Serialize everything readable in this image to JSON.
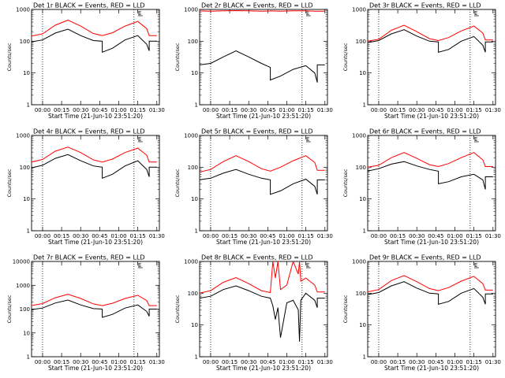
{
  "figure": {
    "xlabel": "Start Time (21-Jun-10 23:51:20)",
    "ylabel": "Counts/sec",
    "x_ticks": [
      "00:00",
      "00:15",
      "00:30",
      "00:45",
      "01:00",
      "01:15",
      "01:30"
    ],
    "y_ticks": [
      "1",
      "10",
      "100",
      "1000"
    ],
    "y_ticks_wide": [
      "1",
      "10",
      "100",
      "1000",
      "10000"
    ],
    "marker_label": "E",
    "colors": {
      "events": "#000000",
      "lld": "#ff0000",
      "background": "#ffffff"
    }
  },
  "chart_data": [
    {
      "type": "line",
      "title": "Det 1r BLACK = Events, RED = LLD",
      "ylim": [
        1,
        1000
      ],
      "yscale": "log",
      "xlim": [
        "23:51:20",
        "01:32:00"
      ],
      "vlines": [
        "00:00",
        "01:12"
      ],
      "marker_x": "01:17",
      "x": [
        "23:51",
        "00:00",
        "00:10",
        "00:20",
        "00:30",
        "00:40",
        "00:47",
        "00:47",
        "00:55",
        "01:05",
        "01:15",
        "01:22",
        "01:24",
        "01:24",
        "01:30"
      ],
      "series": [
        {
          "name": "BLACK = Events",
          "values": [
            95,
            110,
            180,
            240,
            150,
            105,
            100,
            45,
            60,
            110,
            150,
            80,
            50,
            100,
            100
          ]
        },
        {
          "name": "RED = LLD",
          "values": [
            145,
            170,
            320,
            460,
            300,
            175,
            150,
            150,
            185,
            300,
            420,
            250,
            150,
            150,
            150
          ]
        }
      ]
    },
    {
      "type": "line",
      "title": "Det 2r BLACK = Events, RED = LLD",
      "ylim": [
        1,
        1000
      ],
      "yscale": "log",
      "xlim": [
        "23:51:20",
        "01:32:00"
      ],
      "vlines": [
        "00:00",
        "01:12"
      ],
      "marker_x": "01:17",
      "x": [
        "23:51",
        "00:00",
        "00:10",
        "00:20",
        "00:30",
        "00:40",
        "00:47",
        "00:47",
        "00:55",
        "01:05",
        "01:15",
        "01:22",
        "01:24",
        "01:24",
        "01:30"
      ],
      "series": [
        {
          "name": "BLACK = Events",
          "values": [
            18,
            20,
            32,
            50,
            32,
            20,
            15,
            6,
            8,
            13,
            17,
            10,
            5,
            18,
            18
          ]
        },
        {
          "name": "RED = LLD",
          "values": [
            900,
            880,
            900,
            920,
            900,
            880,
            890,
            900,
            880,
            900,
            900,
            880,
            880,
            880,
            880
          ]
        }
      ]
    },
    {
      "type": "line",
      "title": "Det 3r BLACK = Events, RED = LLD",
      "ylim": [
        1,
        1000
      ],
      "yscale": "log",
      "xlim": [
        "23:51:20",
        "01:32:00"
      ],
      "vlines": [
        "00:00",
        "01:12"
      ],
      "marker_x": "01:17",
      "x": [
        "23:51",
        "00:00",
        "00:10",
        "00:20",
        "00:30",
        "00:40",
        "00:47",
        "00:47",
        "00:55",
        "01:05",
        "01:15",
        "01:22",
        "01:24",
        "01:24",
        "01:30"
      ],
      "series": [
        {
          "name": "BLACK = Events",
          "values": [
            90,
            105,
            170,
            230,
            145,
            100,
            95,
            45,
            55,
            100,
            140,
            75,
            45,
            95,
            95
          ]
        },
        {
          "name": "RED = LLD",
          "values": [
            100,
            115,
            220,
            320,
            200,
            120,
            105,
            105,
            130,
            210,
            300,
            180,
            110,
            110,
            110
          ]
        }
      ]
    },
    {
      "type": "line",
      "title": "Det 4r BLACK = Events, RED = LLD",
      "ylim": [
        1,
        1000
      ],
      "yscale": "log",
      "xlim": [
        "23:51:20",
        "01:32:00"
      ],
      "vlines": [
        "00:00",
        "01:12"
      ],
      "marker_x": "01:17",
      "x": [
        "23:51",
        "00:00",
        "00:10",
        "00:20",
        "00:30",
        "00:40",
        "00:47",
        "00:47",
        "00:55",
        "01:05",
        "01:15",
        "01:22",
        "01:24",
        "01:24",
        "01:30"
      ],
      "series": [
        {
          "name": "BLACK = Events",
          "values": [
            95,
            115,
            190,
            250,
            160,
            110,
            100,
            45,
            60,
            110,
            160,
            85,
            50,
            100,
            100
          ]
        },
        {
          "name": "RED = LLD",
          "values": [
            145,
            175,
            320,
            430,
            290,
            170,
            145,
            145,
            180,
            290,
            400,
            240,
            145,
            145,
            145
          ]
        }
      ]
    },
    {
      "type": "line",
      "title": "Det 5r BLACK = Events, RED = LLD",
      "ylim": [
        1,
        1000
      ],
      "yscale": "log",
      "xlim": [
        "23:51:20",
        "01:32:00"
      ],
      "vlines": [
        "00:00",
        "01:12"
      ],
      "marker_x": "01:17",
      "x": [
        "23:51",
        "00:00",
        "00:10",
        "00:20",
        "00:30",
        "00:40",
        "00:47",
        "00:47",
        "00:55",
        "01:05",
        "01:15",
        "01:22",
        "01:24",
        "01:24",
        "01:30"
      ],
      "series": [
        {
          "name": "BLACK = Events",
          "values": [
            40,
            45,
            65,
            85,
            60,
            45,
            40,
            14,
            18,
            30,
            42,
            25,
            14,
            40,
            40
          ]
        },
        {
          "name": "RED = LLD",
          "values": [
            70,
            85,
            150,
            230,
            150,
            90,
            75,
            75,
            100,
            160,
            230,
            140,
            80,
            80,
            80
          ]
        }
      ]
    },
    {
      "type": "line",
      "title": "Det 6r BLACK = Events, RED = LLD",
      "ylim": [
        1,
        1000
      ],
      "yscale": "log",
      "xlim": [
        "23:51:20",
        "01:32:00"
      ],
      "vlines": [
        "00:00",
        "01:12"
      ],
      "marker_x": "01:17",
      "x": [
        "23:51",
        "00:00",
        "00:10",
        "00:20",
        "00:30",
        "00:40",
        "00:47",
        "00:47",
        "00:55",
        "01:05",
        "01:15",
        "01:22",
        "01:24",
        "01:24",
        "01:30"
      ],
      "series": [
        {
          "name": "BLACK = Events",
          "values": [
            75,
            90,
            125,
            150,
            110,
            85,
            75,
            30,
            35,
            50,
            60,
            40,
            20,
            50,
            50
          ]
        },
        {
          "name": "RED = LLD",
          "values": [
            100,
            115,
            200,
            290,
            190,
            120,
            105,
            105,
            130,
            200,
            290,
            170,
            105,
            105,
            105
          ]
        }
      ]
    },
    {
      "type": "line",
      "title": "Det 7r BLACK = Events, RED = LLD",
      "ylim": [
        1,
        10000
      ],
      "yscale": "log",
      "xlim": [
        "23:51:20",
        "01:32:00"
      ],
      "vlines": [
        "00:00",
        "01:12"
      ],
      "marker_x": "01:17",
      "x": [
        "23:51",
        "00:00",
        "00:10",
        "00:20",
        "00:30",
        "00:40",
        "00:47",
        "00:47",
        "00:55",
        "01:05",
        "01:15",
        "01:22",
        "01:24",
        "01:24",
        "01:30"
      ],
      "series": [
        {
          "name": "BLACK = Events",
          "values": [
            95,
            110,
            180,
            240,
            150,
            105,
            100,
            45,
            60,
            110,
            150,
            80,
            50,
            100,
            100
          ]
        },
        {
          "name": "RED = LLD",
          "values": [
            140,
            170,
            300,
            420,
            280,
            165,
            140,
            140,
            175,
            280,
            380,
            230,
            140,
            140,
            140
          ]
        }
      ]
    },
    {
      "type": "line",
      "title": "Det 8r BLACK = Events, RED = LLD",
      "ylim": [
        1,
        1000
      ],
      "yscale": "log",
      "xlim": [
        "23:51:20",
        "01:32:00"
      ],
      "vlines": [
        "00:00",
        "01:12"
      ],
      "marker_x": "01:17",
      "x": [
        "23:51",
        "00:00",
        "00:10",
        "00:20",
        "00:30",
        "00:40",
        "00:47",
        "00:49",
        "00:51",
        "00:53",
        "00:55",
        "01:00",
        "01:05",
        "01:09",
        "01:10",
        "01:11",
        "01:15",
        "01:22",
        "01:24",
        "01:24",
        "01:30"
      ],
      "series": [
        {
          "name": "BLACK = Events",
          "values": [
            70,
            80,
            130,
            170,
            120,
            80,
            70,
            40,
            15,
            35,
            4,
            50,
            60,
            30,
            3,
            60,
            100,
            60,
            35,
            70,
            70
          ]
        },
        {
          "name": "RED = LLD",
          "values": [
            100,
            120,
            220,
            310,
            200,
            120,
            105,
            1000,
            300,
            1000,
            130,
            180,
            1000,
            400,
            1000,
            240,
            300,
            180,
            110,
            110,
            110
          ]
        }
      ]
    },
    {
      "type": "line",
      "title": "Det 9r BLACK = Events, RED = LLD",
      "ylim": [
        1,
        1000
      ],
      "yscale": "log",
      "xlim": [
        "23:51:20",
        "01:32:00"
      ],
      "vlines": [
        "00:00",
        "01:12"
      ],
      "marker_x": "01:17",
      "x": [
        "23:51",
        "00:00",
        "00:10",
        "00:20",
        "00:30",
        "00:40",
        "00:47",
        "00:47",
        "00:55",
        "01:05",
        "01:15",
        "01:22",
        "01:24",
        "01:24",
        "01:30"
      ],
      "series": [
        {
          "name": "BLACK = Events",
          "values": [
            90,
            105,
            170,
            230,
            145,
            100,
            95,
            45,
            55,
            100,
            140,
            75,
            45,
            95,
            95
          ]
        },
        {
          "name": "RED = LLD",
          "values": [
            110,
            130,
            250,
            360,
            230,
            140,
            120,
            120,
            150,
            240,
            340,
            200,
            125,
            125,
            125
          ]
        }
      ]
    }
  ]
}
